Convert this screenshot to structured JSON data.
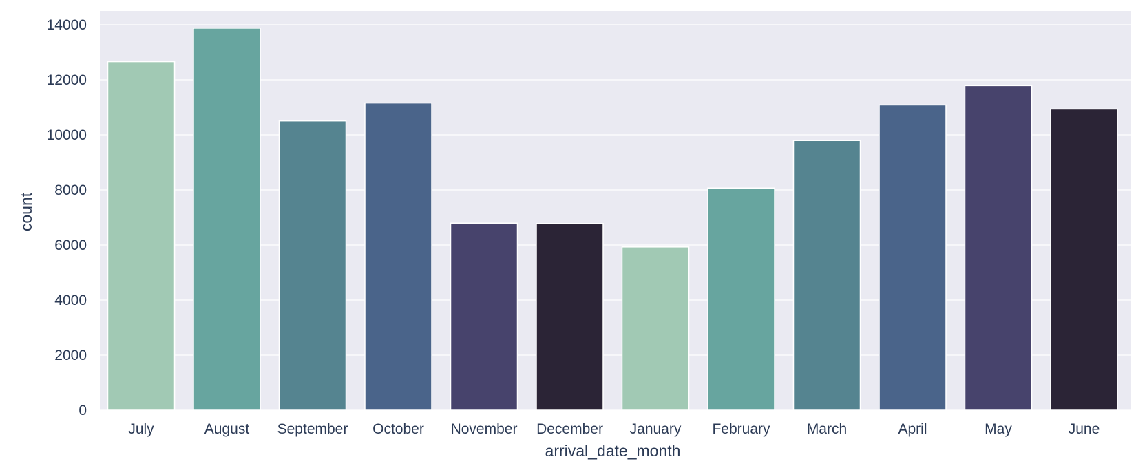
{
  "chart_data": {
    "type": "bar",
    "title": "",
    "xlabel": "arrival_date_month",
    "ylabel": "count",
    "categories": [
      "July",
      "August",
      "September",
      "October",
      "November",
      "December",
      "January",
      "February",
      "March",
      "April",
      "May",
      "June"
    ],
    "values": [
      12661,
      13877,
      10508,
      11160,
      6794,
      6780,
      5929,
      8068,
      9794,
      11089,
      11791,
      10939
    ],
    "ylim": [
      0,
      14500
    ],
    "yticks": [
      0,
      2000,
      4000,
      6000,
      8000,
      10000,
      12000,
      14000
    ],
    "grid": true,
    "background": "#eaeaf2",
    "bar_colors": [
      "#a1c9b4",
      "#67a59f",
      "#558490",
      "#4a648a",
      "#47436c",
      "#2b2436",
      "#a1c9b4",
      "#67a59f",
      "#558490",
      "#4a648a",
      "#47436c",
      "#2b2436"
    ]
  }
}
